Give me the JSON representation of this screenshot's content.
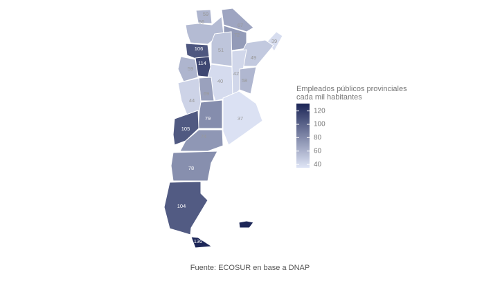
{
  "map": {
    "legend_title": [
      "Empleados públicos provinciales",
      "cada mil habitantes"
    ],
    "values": [
      59,
      56,
      67,
      72,
      39,
      49,
      51,
      106,
      114,
      59,
      40,
      42,
      58,
      69,
      44,
      79,
      37,
      105,
      74,
      78,
      104,
      130
    ],
    "clim": [
      35,
      131
    ],
    "ticks": [
      40,
      60,
      80,
      100,
      120
    ],
    "colors": [
      "#dfe5f6",
      "#1b2556"
    ]
  },
  "caption": "Fuente: ECOSUR en base a DNAP"
}
